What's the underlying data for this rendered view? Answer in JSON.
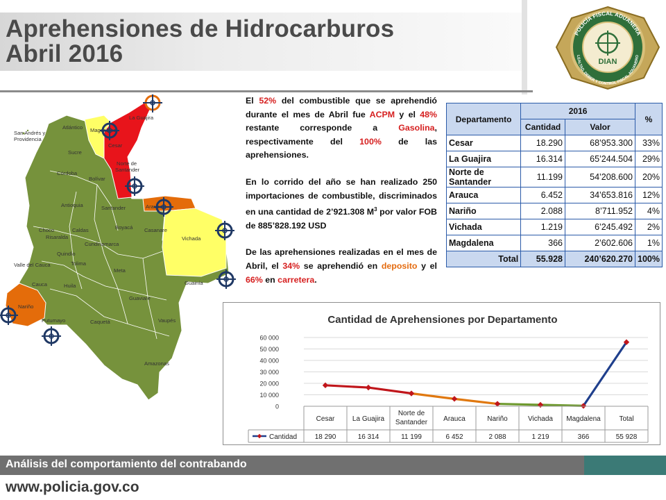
{
  "header": {
    "title_line1": "Aprehensiones de Hidrocarburos",
    "title_line2": "Abril 2016"
  },
  "logo": {
    "top_text": "POLICÍA FISCAL ADUANERA",
    "center_text": "DIAN",
    "bottom_text": "LEALTAD, DEBER Y CONTROL FISCAL ADUANERO"
  },
  "map": {
    "labels": {
      "la_guajira": "La Guajira",
      "atlantico": "Atlántico",
      "magdalena": "Magdalena",
      "san_andres": "San Andrés y",
      "providencia": "Providencia",
      "cesar": "Cesar",
      "sucre": "Sucre",
      "norte1": "Norte de",
      "norte2": "Santander",
      "cordoba": "Córdoba",
      "bolivar": "Bolívar",
      "antioquia": "Antioquia",
      "santander": "Santander",
      "arauca": "Arauca",
      "vichada": "Vichada",
      "choco": "Choco",
      "caldas": "Caldas",
      "boyaca": "Boyacá",
      "casanare": "Casanare",
      "risaralda": "Risaralda",
      "quindio": "Quindío",
      "cundinamarca": "Cundinamarca",
      "valle": "Valle del Cauca",
      "tolima": "Tolima",
      "meta": "Meta",
      "guainia": "Guainía",
      "cauca": "Cauca",
      "huila": "Huila",
      "guaviare": "Guaviare",
      "narino": "Nariño",
      "putumayo": "Putumayo",
      "caqueta": "Caquetá",
      "vaupes": "Vaupés",
      "amazonas": "Amazonas"
    }
  },
  "text": {
    "p1": {
      "a": "El ",
      "pct1": "52%",
      "b": " del combustible que se aprehendió durante el mes de Abril fue ",
      "acpm": "ACPM",
      "c": " y el ",
      "pct2": "48%",
      "d": " restante corresponde a ",
      "gasolina": "Gasolina",
      "e": ", respectivamente  del ",
      "pct3": "100%",
      "f": " de las aprehensiones."
    },
    "p2_a": "En lo corrido del año se han realizado 250 importaciones de combustible, discriminados en una cantidad de 2’921.308 M",
    "p2_sup": "3",
    "p2_b": " por valor FOB de 885’828.192 USD",
    "p3": {
      "a": "De las aprehensiones realizadas en el mes de Abril, el ",
      "pct1": "34%",
      "b": " se aprehendió en ",
      "deposito": "deposito",
      "c": " y el ",
      "pct2": "66%",
      "d": " en ",
      "carretera": "carretera",
      "e": "."
    }
  },
  "table": {
    "h_departamento": "Departamento",
    "h_year": "2016",
    "h_pct": "%",
    "h_cantidad": "Cantidad",
    "h_valor": "Valor",
    "rows": [
      {
        "dep": "Cesar",
        "cantidad": "18.290",
        "valor": "68’953.300",
        "pct": "33%"
      },
      {
        "dep": "La Guajira",
        "cantidad": "16.314",
        "valor": "65’244.504",
        "pct": "29%"
      },
      {
        "dep": "Norte de Santander",
        "cantidad": "11.199",
        "valor": "54’208.600",
        "pct": "20%"
      },
      {
        "dep": "Arauca",
        "cantidad": "6.452",
        "valor": "34’653.816",
        "pct": "12%"
      },
      {
        "dep": "Nariño",
        "cantidad": "2.088",
        "valor": "8’711.952",
        "pct": "4%"
      },
      {
        "dep": "Vichada",
        "cantidad": "1.219",
        "valor": "6’245.492",
        "pct": "2%"
      },
      {
        "dep": "Magdalena",
        "cantidad": "366",
        "valor": "2’602.606",
        "pct": "1%"
      }
    ],
    "total": {
      "label": "Total",
      "cantidad": "55.928",
      "valor": "240’620.270",
      "pct": "100%"
    }
  },
  "chart_data": {
    "type": "line",
    "title": "Cantidad de Aprehensiones por Departamento",
    "categories": [
      "Cesar",
      "La Guajira",
      "Norte de Santander",
      "Arauca",
      "Nariño",
      "Vichada",
      "Magdalena",
      "Total"
    ],
    "series": [
      {
        "name": "Cantidad",
        "values": [
          18290,
          16314,
          11199,
          6452,
          2088,
          1219,
          366,
          55928
        ],
        "labels": [
          "18 290",
          "16 314",
          "11 199",
          "6 452",
          "2 088",
          "1 219",
          "366",
          "55 928"
        ]
      }
    ],
    "ylim": [
      0,
      60000
    ],
    "yticks": [
      0,
      10000,
      20000,
      30000,
      40000,
      50000,
      60000
    ],
    "ytick_labels": [
      "0",
      "10 000",
      "20 000",
      "30 000",
      "40 000",
      "50 000",
      "60 000"
    ],
    "grid": true,
    "data_table": true,
    "segment_colors": [
      "#c0161b",
      "#c0161b",
      "#e0780f",
      "#e0780f",
      "#6f9a2f",
      "#6f9a2f",
      "#1f3f8c"
    ],
    "marker_color": "#c0161b"
  },
  "footer": {
    "subtitle": "Análisis del comportamiento del contrabando",
    "url": "www.policia.gov.co"
  },
  "colors": {
    "red_region": "#e8141b",
    "yellow_region": "#ffff66",
    "orange_region": "#e46c0a",
    "green_region": "#76923c",
    "target_orange": "#e46c0a",
    "target_blue": "#1f3864"
  }
}
